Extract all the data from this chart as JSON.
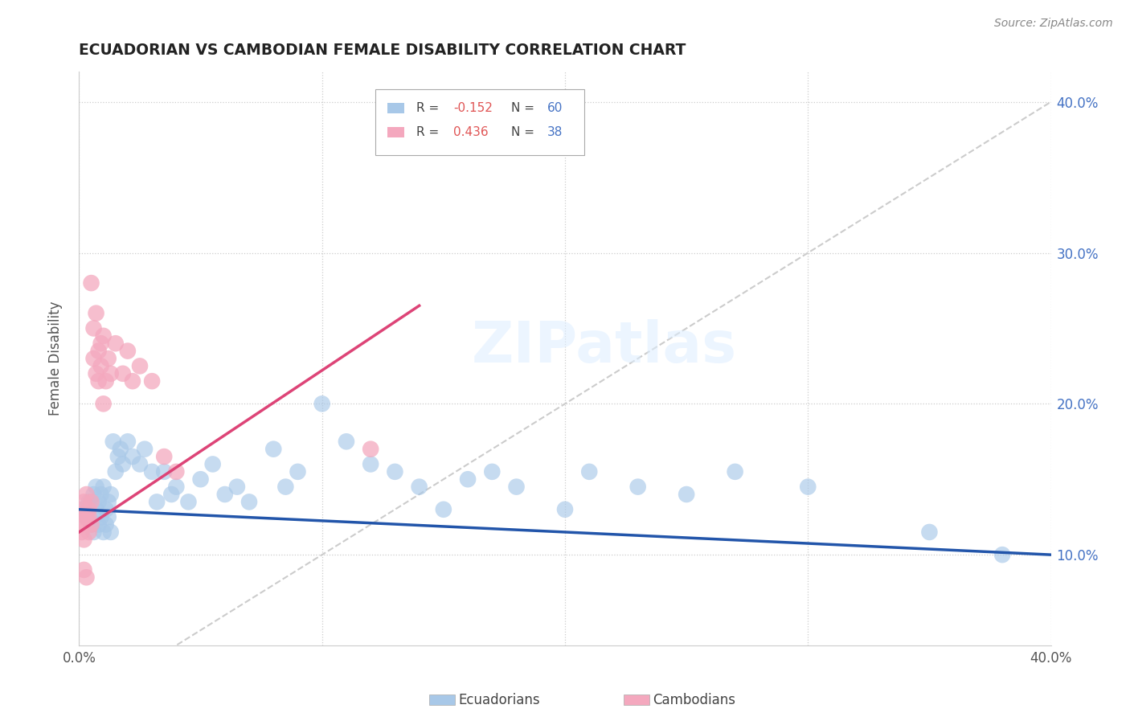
{
  "title": "ECUADORIAN VS CAMBODIAN FEMALE DISABILITY CORRELATION CHART",
  "source": "Source: ZipAtlas.com",
  "ylabel": "Female Disability",
  "xlim": [
    0.0,
    0.4
  ],
  "ylim": [
    0.04,
    0.42
  ],
  "blue_color": "#a8c8e8",
  "pink_color": "#f4a8be",
  "blue_line_color": "#2255aa",
  "pink_line_color": "#dd4477",
  "diagonal_color": "#cccccc",
  "ecuadorian_x": [
    0.002,
    0.003,
    0.004,
    0.005,
    0.006,
    0.006,
    0.007,
    0.007,
    0.008,
    0.008,
    0.009,
    0.009,
    0.01,
    0.01,
    0.011,
    0.011,
    0.012,
    0.012,
    0.013,
    0.013,
    0.014,
    0.015,
    0.016,
    0.017,
    0.018,
    0.02,
    0.022,
    0.025,
    0.027,
    0.03,
    0.032,
    0.035,
    0.038,
    0.04,
    0.045,
    0.05,
    0.055,
    0.06,
    0.065,
    0.07,
    0.08,
    0.085,
    0.09,
    0.1,
    0.11,
    0.12,
    0.13,
    0.14,
    0.15,
    0.16,
    0.17,
    0.18,
    0.2,
    0.21,
    0.23,
    0.25,
    0.27,
    0.3,
    0.35,
    0.38
  ],
  "ecuadorian_y": [
    0.13,
    0.125,
    0.135,
    0.12,
    0.14,
    0.115,
    0.13,
    0.145,
    0.12,
    0.135,
    0.125,
    0.14,
    0.115,
    0.145,
    0.13,
    0.12,
    0.135,
    0.125,
    0.14,
    0.115,
    0.175,
    0.155,
    0.165,
    0.17,
    0.16,
    0.175,
    0.165,
    0.16,
    0.17,
    0.155,
    0.135,
    0.155,
    0.14,
    0.145,
    0.135,
    0.15,
    0.16,
    0.14,
    0.145,
    0.135,
    0.17,
    0.145,
    0.155,
    0.2,
    0.175,
    0.16,
    0.155,
    0.145,
    0.13,
    0.15,
    0.155,
    0.145,
    0.13,
    0.155,
    0.145,
    0.14,
    0.155,
    0.145,
    0.115,
    0.1
  ],
  "cambodian_x": [
    0.001,
    0.001,
    0.001,
    0.002,
    0.002,
    0.002,
    0.002,
    0.003,
    0.003,
    0.003,
    0.004,
    0.004,
    0.004,
    0.005,
    0.005,
    0.005,
    0.006,
    0.006,
    0.007,
    0.007,
    0.008,
    0.008,
    0.009,
    0.009,
    0.01,
    0.01,
    0.011,
    0.012,
    0.013,
    0.015,
    0.018,
    0.02,
    0.022,
    0.025,
    0.03,
    0.035,
    0.04,
    0.12
  ],
  "cambodian_y": [
    0.12,
    0.13,
    0.115,
    0.125,
    0.135,
    0.11,
    0.09,
    0.14,
    0.125,
    0.085,
    0.13,
    0.115,
    0.125,
    0.135,
    0.12,
    0.28,
    0.25,
    0.23,
    0.26,
    0.22,
    0.235,
    0.215,
    0.24,
    0.225,
    0.245,
    0.2,
    0.215,
    0.23,
    0.22,
    0.24,
    0.22,
    0.235,
    0.215,
    0.225,
    0.215,
    0.165,
    0.155,
    0.17
  ],
  "blue_line_x0": 0.0,
  "blue_line_y0": 0.13,
  "blue_line_x1": 0.4,
  "blue_line_y1": 0.1,
  "pink_line_x0": 0.0,
  "pink_line_y0": 0.115,
  "pink_line_x1": 0.14,
  "pink_line_y1": 0.265
}
